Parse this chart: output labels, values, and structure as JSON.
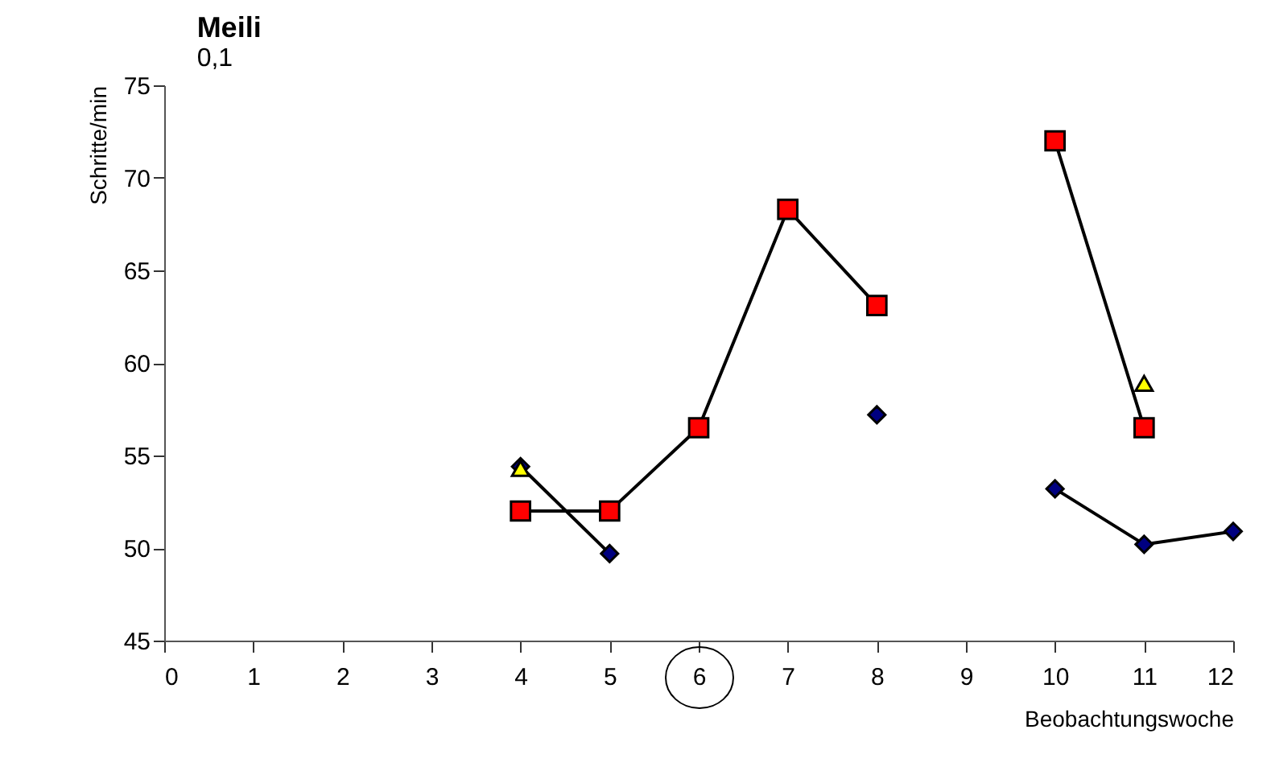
{
  "chart_data": {
    "type": "line",
    "title": "Meili",
    "subtitle": "0,1",
    "xlabel": "Beobachtungswoche",
    "ylabel": "Schritte/min",
    "x": [
      4,
      5,
      6,
      7,
      8,
      9,
      10,
      11,
      12
    ],
    "series": [
      {
        "color": "#ff0000",
        "marker": "square",
        "values": [
          52.0,
          52.0,
          56.5,
          68.3,
          63.1,
          null,
          72.0,
          56.5,
          null
        ]
      },
      {
        "color": "#000080",
        "marker": "diamond",
        "values": [
          54.4,
          49.7,
          null,
          null,
          57.2,
          null,
          53.2,
          50.2,
          50.9
        ]
      },
      {
        "type": "scatter",
        "color": "#ffff00",
        "marker": "triangle",
        "values": [
          54.3,
          null,
          null,
          null,
          null,
          null,
          null,
          58.9,
          null
        ]
      }
    ],
    "xlim": [
      0,
      12
    ],
    "xticks": [
      0,
      1,
      2,
      3,
      4,
      5,
      6,
      7,
      8,
      9,
      10,
      11,
      12
    ],
    "ylim": [
      45,
      75
    ],
    "yticks": [
      45,
      50,
      55,
      60,
      65,
      70,
      75
    ],
    "grid": false
  }
}
